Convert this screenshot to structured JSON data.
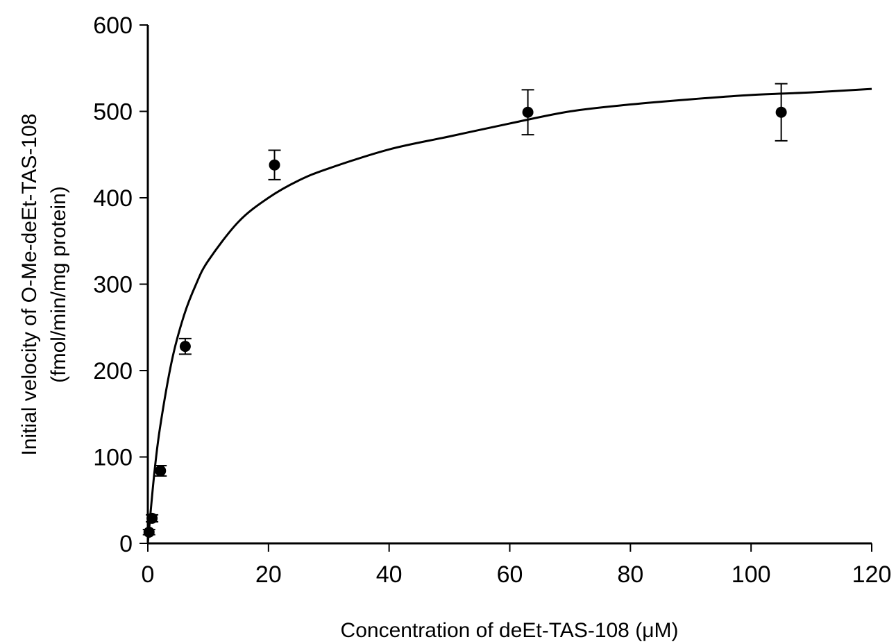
{
  "chart_data": {
    "type": "scatter",
    "title": "",
    "xlabel": "Concentration of deEt-TAS-108 (μM)",
    "ylabel_line1": "Initial velocity of O-Me-deEt-TAS-108",
    "ylabel_line2": "(fmol/min/mg protein)",
    "xlim": [
      0,
      120
    ],
    "ylim": [
      0,
      600
    ],
    "x_ticks": [
      0,
      20,
      40,
      60,
      80,
      100,
      120
    ],
    "y_ticks": [
      0,
      100,
      200,
      300,
      400,
      500,
      600
    ],
    "grid": false,
    "legend": "none",
    "series": [
      {
        "kind": "measured",
        "marker": "filled-circle",
        "points": [
          {
            "x": 0.2,
            "y": 13,
            "err": 3
          },
          {
            "x": 0.7,
            "y": 29,
            "err": 4
          },
          {
            "x": 2.1,
            "y": 84,
            "err": 6
          },
          {
            "x": 6.2,
            "y": 228,
            "err": 9
          },
          {
            "x": 21,
            "y": 438,
            "err": 17
          },
          {
            "x": 63,
            "y": 499,
            "err": 26
          },
          {
            "x": 105,
            "y": 499,
            "err": 33
          }
        ]
      },
      {
        "kind": "fit",
        "line": "solid",
        "points": [
          {
            "x": 0,
            "y": 0
          },
          {
            "x": 1,
            "y": 76
          },
          {
            "x": 2,
            "y": 133
          },
          {
            "x": 4,
            "y": 212
          },
          {
            "x": 6,
            "y": 264
          },
          {
            "x": 8,
            "y": 300
          },
          {
            "x": 10,
            "y": 327
          },
          {
            "x": 15,
            "y": 372
          },
          {
            "x": 20,
            "y": 400
          },
          {
            "x": 25,
            "y": 420
          },
          {
            "x": 30,
            "y": 434
          },
          {
            "x": 40,
            "y": 456
          },
          {
            "x": 50,
            "y": 471
          },
          {
            "x": 60,
            "y": 486
          },
          {
            "x": 70,
            "y": 500
          },
          {
            "x": 80,
            "y": 508
          },
          {
            "x": 90,
            "y": 514
          },
          {
            "x": 100,
            "y": 519
          },
          {
            "x": 110,
            "y": 522
          },
          {
            "x": 120,
            "y": 526
          }
        ]
      }
    ]
  }
}
